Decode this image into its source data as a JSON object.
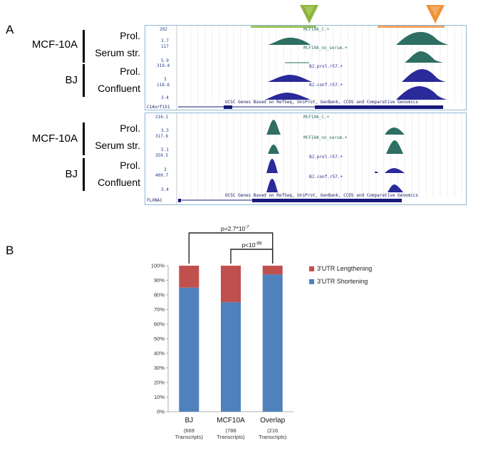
{
  "panel_a": {
    "letter": "A",
    "top_browser": {
      "groups": [
        {
          "name": "MCF-10A",
          "rows": [
            "Prol.",
            "Serum str."
          ]
        },
        {
          "name": "BJ",
          "rows": [
            "Prol.",
            "Confluent"
          ]
        }
      ],
      "scale_values": [
        "292",
        "3.7",
        "117",
        "5.9",
        "319.4",
        "3",
        "118.6",
        "3.4"
      ],
      "track_names": [
        "MCF10A_C.+",
        "MCF10A_no_serum.+",
        "BJ.prol.r57.+",
        "BJ.conf.r57.+"
      ],
      "gene_track_label": "UCSC Genes Based on RefSeq, UniProt, GenBank, CCDS and Comparative Genomics",
      "gene_name": "C14orf151",
      "arrow_colors": {
        "green": "#8cb43c",
        "orange": "#f0913a"
      },
      "bar_colors": {
        "green": "#9bc25a",
        "orange": "#f2a35e"
      }
    },
    "bottom_browser": {
      "groups": [
        {
          "name": "MCF-10A",
          "rows": [
            "Prol.",
            "Serum str."
          ]
        },
        {
          "name": "BJ",
          "rows": [
            "Prol.",
            "Confluent"
          ]
        }
      ],
      "scale_values": [
        "216.1",
        "3.3",
        "317.6",
        "5.1",
        "359.5",
        "3",
        "409.7",
        "3.4"
      ],
      "track_names": [
        "MCF10A_C.+",
        "MCF10A_no_serum.+",
        "BJ.prol.r57.+",
        "BJ.conf.r57.+"
      ],
      "gene_track_label": "UCSC Genes Based on RefSeq, UniProt, GenBank, CCDS and Comparative Genomics",
      "gene_name": "FLXNA1"
    },
    "colors": {
      "mcf": "#2e6e63",
      "bj": "#2a2a9a",
      "frame": "#8fb9d6"
    }
  },
  "panel_b": {
    "letter": "B",
    "chart_data": {
      "type": "bar",
      "stacked": true,
      "categories": [
        "BJ",
        "MCF10A",
        "Overlap"
      ],
      "category_notes": [
        [
          "(669",
          "Transcripts)"
        ],
        [
          "(788",
          "Transcripts)"
        ],
        [
          "(216",
          "Transcripts)"
        ]
      ],
      "series": [
        {
          "name": "3'UTR Shortening",
          "color": "#4f81bd",
          "values": [
            85,
            75,
            94
          ]
        },
        {
          "name": "3'UTR Lengthening",
          "color": "#c0504d",
          "values": [
            15,
            25,
            6
          ]
        }
      ],
      "yticks": [
        "0%",
        "10%",
        "20%",
        "30%",
        "40%",
        "50%",
        "60%",
        "70%",
        "80%",
        "90%",
        "100%"
      ],
      "ylim": [
        0,
        100
      ],
      "legend_position": "right",
      "annotations": [
        {
          "label_base": "p=2.7*10",
          "label_exp": "-7",
          "from": "BJ",
          "to": "Overlap"
        },
        {
          "label_base": "p<10",
          "label_exp": "-99",
          "from": "MCF10A",
          "to": "Overlap"
        }
      ]
    }
  }
}
